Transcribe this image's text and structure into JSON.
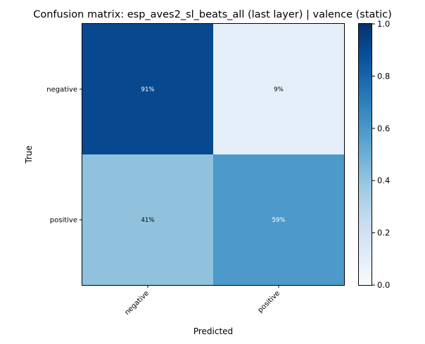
{
  "chart_data": {
    "type": "heatmap",
    "title": "Confusion matrix: esp_aves2_sl_beats_all (last layer) | valence (static)",
    "xlabel": "Predicted",
    "ylabel": "True",
    "x_categories": [
      "negative",
      "positive"
    ],
    "y_categories": [
      "negative",
      "positive"
    ],
    "values": [
      [
        0.91,
        0.09
      ],
      [
        0.41,
        0.59
      ]
    ],
    "cell_labels": [
      [
        "91%",
        "9%"
      ],
      [
        "41%",
        "59%"
      ]
    ],
    "colorbar": {
      "range": [
        0,
        1
      ],
      "ticks": [
        "0.0",
        "0.2",
        "0.4",
        "0.6",
        "0.8",
        "1.0"
      ],
      "tick_values": [
        0.0,
        0.2,
        0.4,
        0.6,
        0.8,
        1.0
      ],
      "colormap": "Blues"
    },
    "grid": false,
    "legend": "none"
  }
}
